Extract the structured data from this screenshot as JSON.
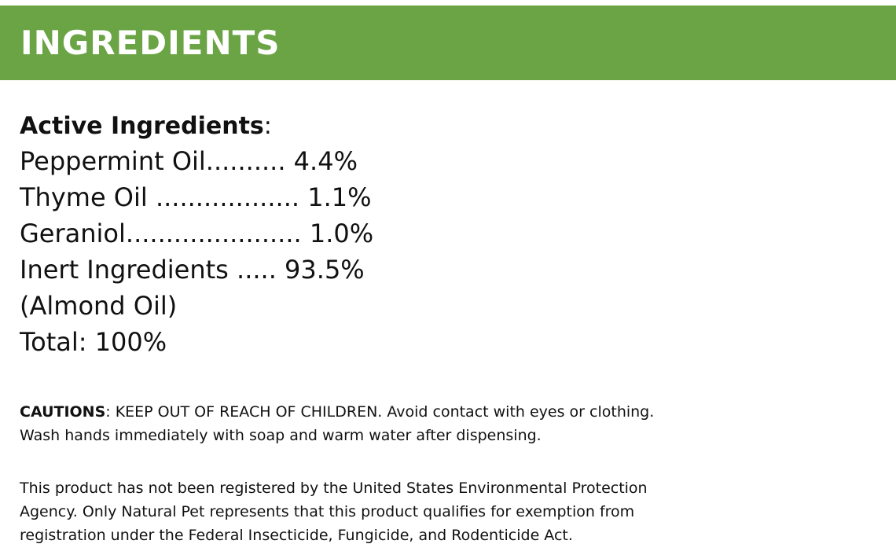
{
  "banner": {
    "title": "INGREDIENTS",
    "color": "#6aa444"
  },
  "active": {
    "heading": "Active Ingredients",
    "heading_colon": ":",
    "lines": [
      "Peppermint Oil.......... 4.4%",
      "Thyme Oil .................. 1.1%",
      "Geraniol...................... 1.0%",
      "Inert Ingredients ..... 93.5%",
      "(Almond Oil)",
      "Total: 100%"
    ]
  },
  "cautions": {
    "label": "CAUTIONS",
    "line1_rest": ": KEEP OUT OF REACH OF CHILDREN. Avoid contact with eyes or clothing.",
    "line2": "Wash hands immediately with soap and warm water after dispensing."
  },
  "disclaimer": {
    "lines": [
      "This product has not been registered by the United States Environmental Protection",
      "Agency. Only Natural Pet represents that this product qualifies for exemption from",
      "registration under the Federal Insecticide, Fungicide, and Rodenticide Act."
    ]
  }
}
